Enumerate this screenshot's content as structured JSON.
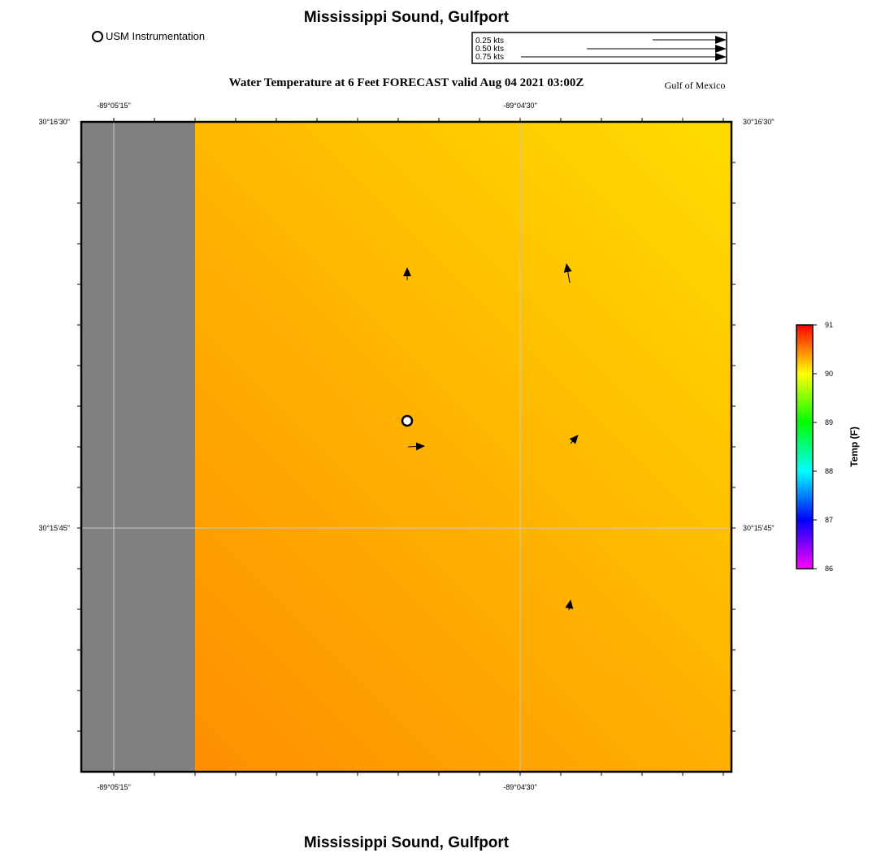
{
  "header": {
    "location_title": "Mississippi Sound, Gulfport",
    "forecast_title": "Water Temperature at 6 Feet FORECAST valid Aug 04 2021 03:00Z",
    "region_label": "Gulf of Mexico",
    "instrumentation_label": "USM Instrumentation"
  },
  "footer": {
    "location_title": "Mississippi Sound, Gulfport"
  },
  "vector_scale": {
    "unit": "kts",
    "entries": [
      {
        "label": "0.25 kts",
        "speed": 0.25
      },
      {
        "label": "0.50 kts",
        "speed": 0.5
      },
      {
        "label": "0.75 kts",
        "speed": 0.75
      }
    ]
  },
  "axes": {
    "lon_labels": [
      "-89°05'15\"",
      "-89°04'30\""
    ],
    "lat_labels": [
      "30°16'30\"",
      "30°15'45\""
    ]
  },
  "colorbar": {
    "title": "Temp (F)",
    "min": 86,
    "max": 91,
    "tick_labels": [
      "91",
      "90",
      "89",
      "88",
      "87",
      "86"
    ],
    "colors": [
      "#ff00ff",
      "#0000ff",
      "#00ffff",
      "#00ff00",
      "#ffff00",
      "#ff0000"
    ]
  },
  "map_colors": {
    "land": "#808080",
    "water_warm": "#ff8800",
    "water_mid": "#ffb000",
    "water_cool": "#ffdd00",
    "grid": "#c8c8c8"
  },
  "current_vectors": [
    {
      "name": "vector-nw",
      "direction": "north",
      "speed": 0.1
    },
    {
      "name": "vector-ne",
      "direction": "north-northwest",
      "speed": 0.12
    },
    {
      "name": "vector-center-west",
      "direction": "east",
      "speed": 0.12
    },
    {
      "name": "vector-center-east",
      "direction": "northeast",
      "speed": 0.06
    },
    {
      "name": "vector-south",
      "direction": "north",
      "speed": 0.05
    }
  ],
  "instrument_sites": [
    {
      "name": "usm-station"
    }
  ]
}
